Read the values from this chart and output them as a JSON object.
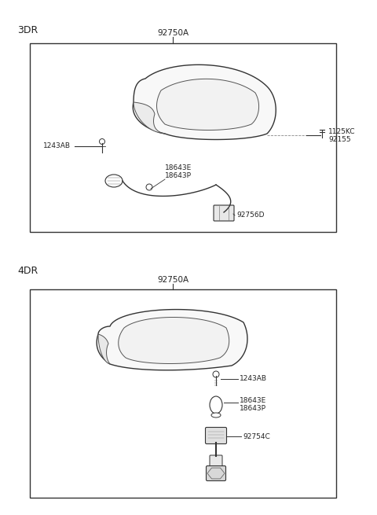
{
  "bg": "#ffffff",
  "line_color": "#333333",
  "text_color": "#222222",
  "section1_label": "3DR",
  "section2_label": "4DR",
  "part_label": "92750A",
  "figsize": [
    4.8,
    6.55
  ],
  "dpi": 100
}
